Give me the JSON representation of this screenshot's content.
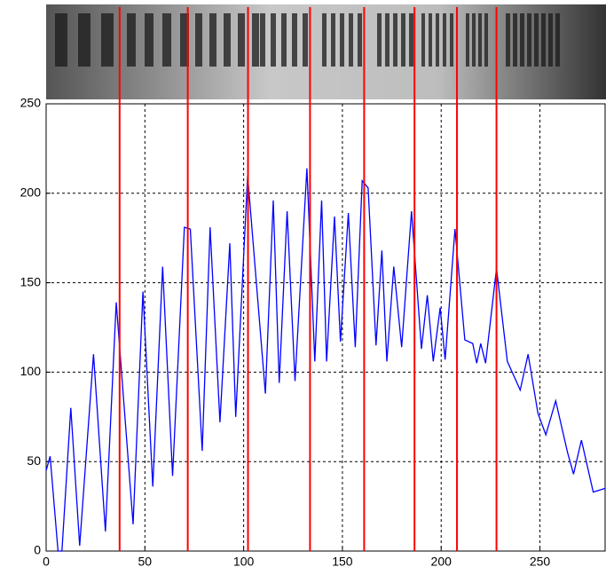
{
  "chart_data": {
    "type": "line",
    "x": [
      0,
      2,
      6,
      8,
      12.5,
      17,
      24,
      30,
      35.5,
      44,
      49,
      54,
      59,
      64,
      70,
      73,
      79,
      83,
      88,
      93,
      96,
      102,
      111,
      115,
      118,
      122,
      126,
      132,
      136,
      139.5,
      142,
      146,
      149,
      153,
      156.5,
      160,
      163,
      167,
      170,
      172.5,
      176,
      180,
      185,
      190,
      193,
      196,
      199.5,
      202,
      207,
      212,
      216,
      218,
      220,
      222.5,
      228,
      233.5,
      238,
      240,
      244,
      249,
      253,
      258,
      264,
      267,
      271,
      277,
      283
    ],
    "series": [
      {
        "color": "#0000ff",
        "values": [
          45,
          53,
          0,
          0,
          80,
          3,
          110,
          11,
          139,
          15,
          145,
          36,
          159,
          42,
          181,
          180,
          56,
          181,
          72,
          172,
          75,
          210,
          88,
          196,
          94,
          190,
          95,
          214,
          106,
          196,
          106,
          187,
          117,
          189,
          114,
          207,
          203,
          115,
          168,
          106,
          159,
          114,
          190,
          113,
          143,
          106,
          136,
          107,
          180,
          118,
          116,
          105,
          116,
          105,
          158,
          106,
          95,
          90,
          110,
          77,
          65,
          84,
          55,
          43,
          62,
          33,
          35
        ]
      }
    ],
    "vertical_lines": {
      "color": "#ff0000",
      "x": [
        37.2,
        71.7,
        102.2,
        133.6,
        161,
        186.5,
        208,
        228
      ]
    },
    "xlim": [
      0,
      283
    ],
    "ylim": [
      0,
      250
    ],
    "xticks": [
      0,
      50,
      100,
      150,
      200,
      250
    ],
    "yticks": [
      0,
      50,
      100,
      150,
      200,
      250
    ],
    "grid": true
  }
}
